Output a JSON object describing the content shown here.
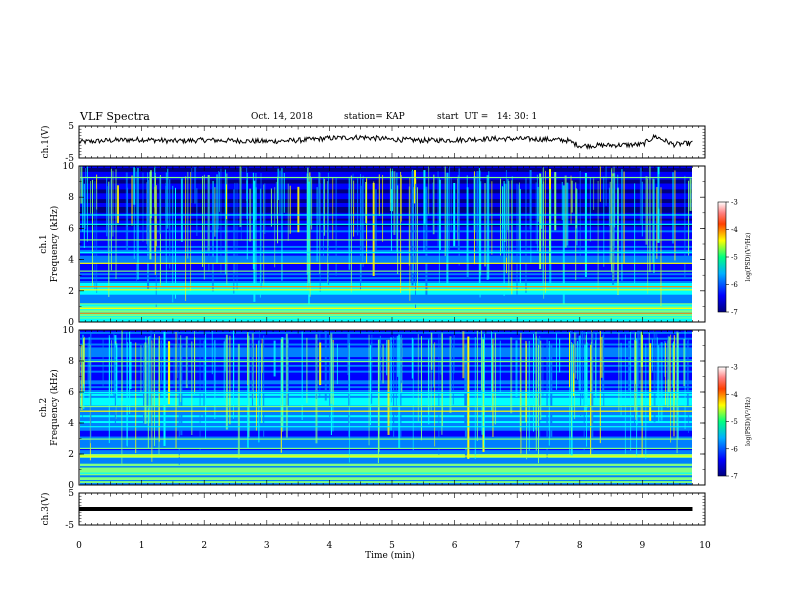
{
  "header": {
    "title": "VLF Spectra",
    "date": "Oct. 14, 2018",
    "station": "station= KAP",
    "start": "start  UT =   14: 30: 1"
  },
  "chart_data": [
    {
      "type": "line",
      "panel": "ch1-waveform",
      "ylabel": "ch.1(V)",
      "ylim": [
        -5,
        5
      ],
      "yticks": [
        "5",
        "-5"
      ],
      "xlim": [
        0,
        10
      ],
      "series_color": "#000000",
      "x": [
        0,
        0.5,
        1,
        1.5,
        2,
        2.5,
        3,
        3.5,
        4,
        4.5,
        5,
        5.5,
        6,
        6.5,
        7,
        7.5,
        7.8,
        8,
        8.5,
        9,
        9.2,
        9.5,
        9.8
      ],
      "values": [
        0,
        0.5,
        0.8,
        0.3,
        0.6,
        0.4,
        0.2,
        0.5,
        1.2,
        1.5,
        0.8,
        0.5,
        0.6,
        1.0,
        1.0,
        0.8,
        0.5,
        -1.2,
        -1.0,
        -0.8,
        1.8,
        -0.8,
        -0.3
      ]
    },
    {
      "type": "heatmap",
      "panel": "ch1-spectrogram",
      "ylabel": "ch.1\nFrequency (kHz)",
      "ylim": [
        0,
        10
      ],
      "yticks": [
        "0",
        "2",
        "4",
        "6",
        "8",
        "10"
      ],
      "xlim": [
        0,
        10
      ],
      "colorbar": {
        "label": "log(PSD)(V²/Hz)",
        "ticks": [
          "-3",
          "-4",
          "-5",
          "-6",
          "-7"
        ],
        "range": [
          -7,
          -3
        ]
      }
    },
    {
      "type": "heatmap",
      "panel": "ch2-spectrogram",
      "ylabel": "ch.2\nFrequency (kHz)",
      "ylim": [
        0,
        10
      ],
      "yticks": [
        "0",
        "2",
        "4",
        "6",
        "8",
        "10"
      ],
      "xlim": [
        0,
        10
      ],
      "colorbar": {
        "label": "log(PSD)(V²/Hz)",
        "ticks": [
          "-3",
          "-4",
          "-5",
          "-6",
          "-7"
        ],
        "range": [
          -7,
          -3
        ]
      }
    },
    {
      "type": "line",
      "panel": "ch3-waveform",
      "ylabel": "ch.3(V)",
      "ylim": [
        -5,
        5
      ],
      "yticks": [
        "5",
        "-5"
      ],
      "xlim": [
        0,
        10
      ],
      "x": [
        0,
        9.8
      ],
      "values": [
        0,
        0
      ]
    }
  ],
  "xaxis": {
    "label": "Time (min)",
    "ticks": [
      "0",
      "1",
      "2",
      "3",
      "4",
      "5",
      "6",
      "7",
      "8",
      "9",
      "10"
    ]
  },
  "colors": {
    "spectrum": [
      "#00007f",
      "#0000ff",
      "#0080ff",
      "#00ffff",
      "#80ff80",
      "#ffff00",
      "#ff8000",
      "#ff0000",
      "#ffffff"
    ]
  }
}
